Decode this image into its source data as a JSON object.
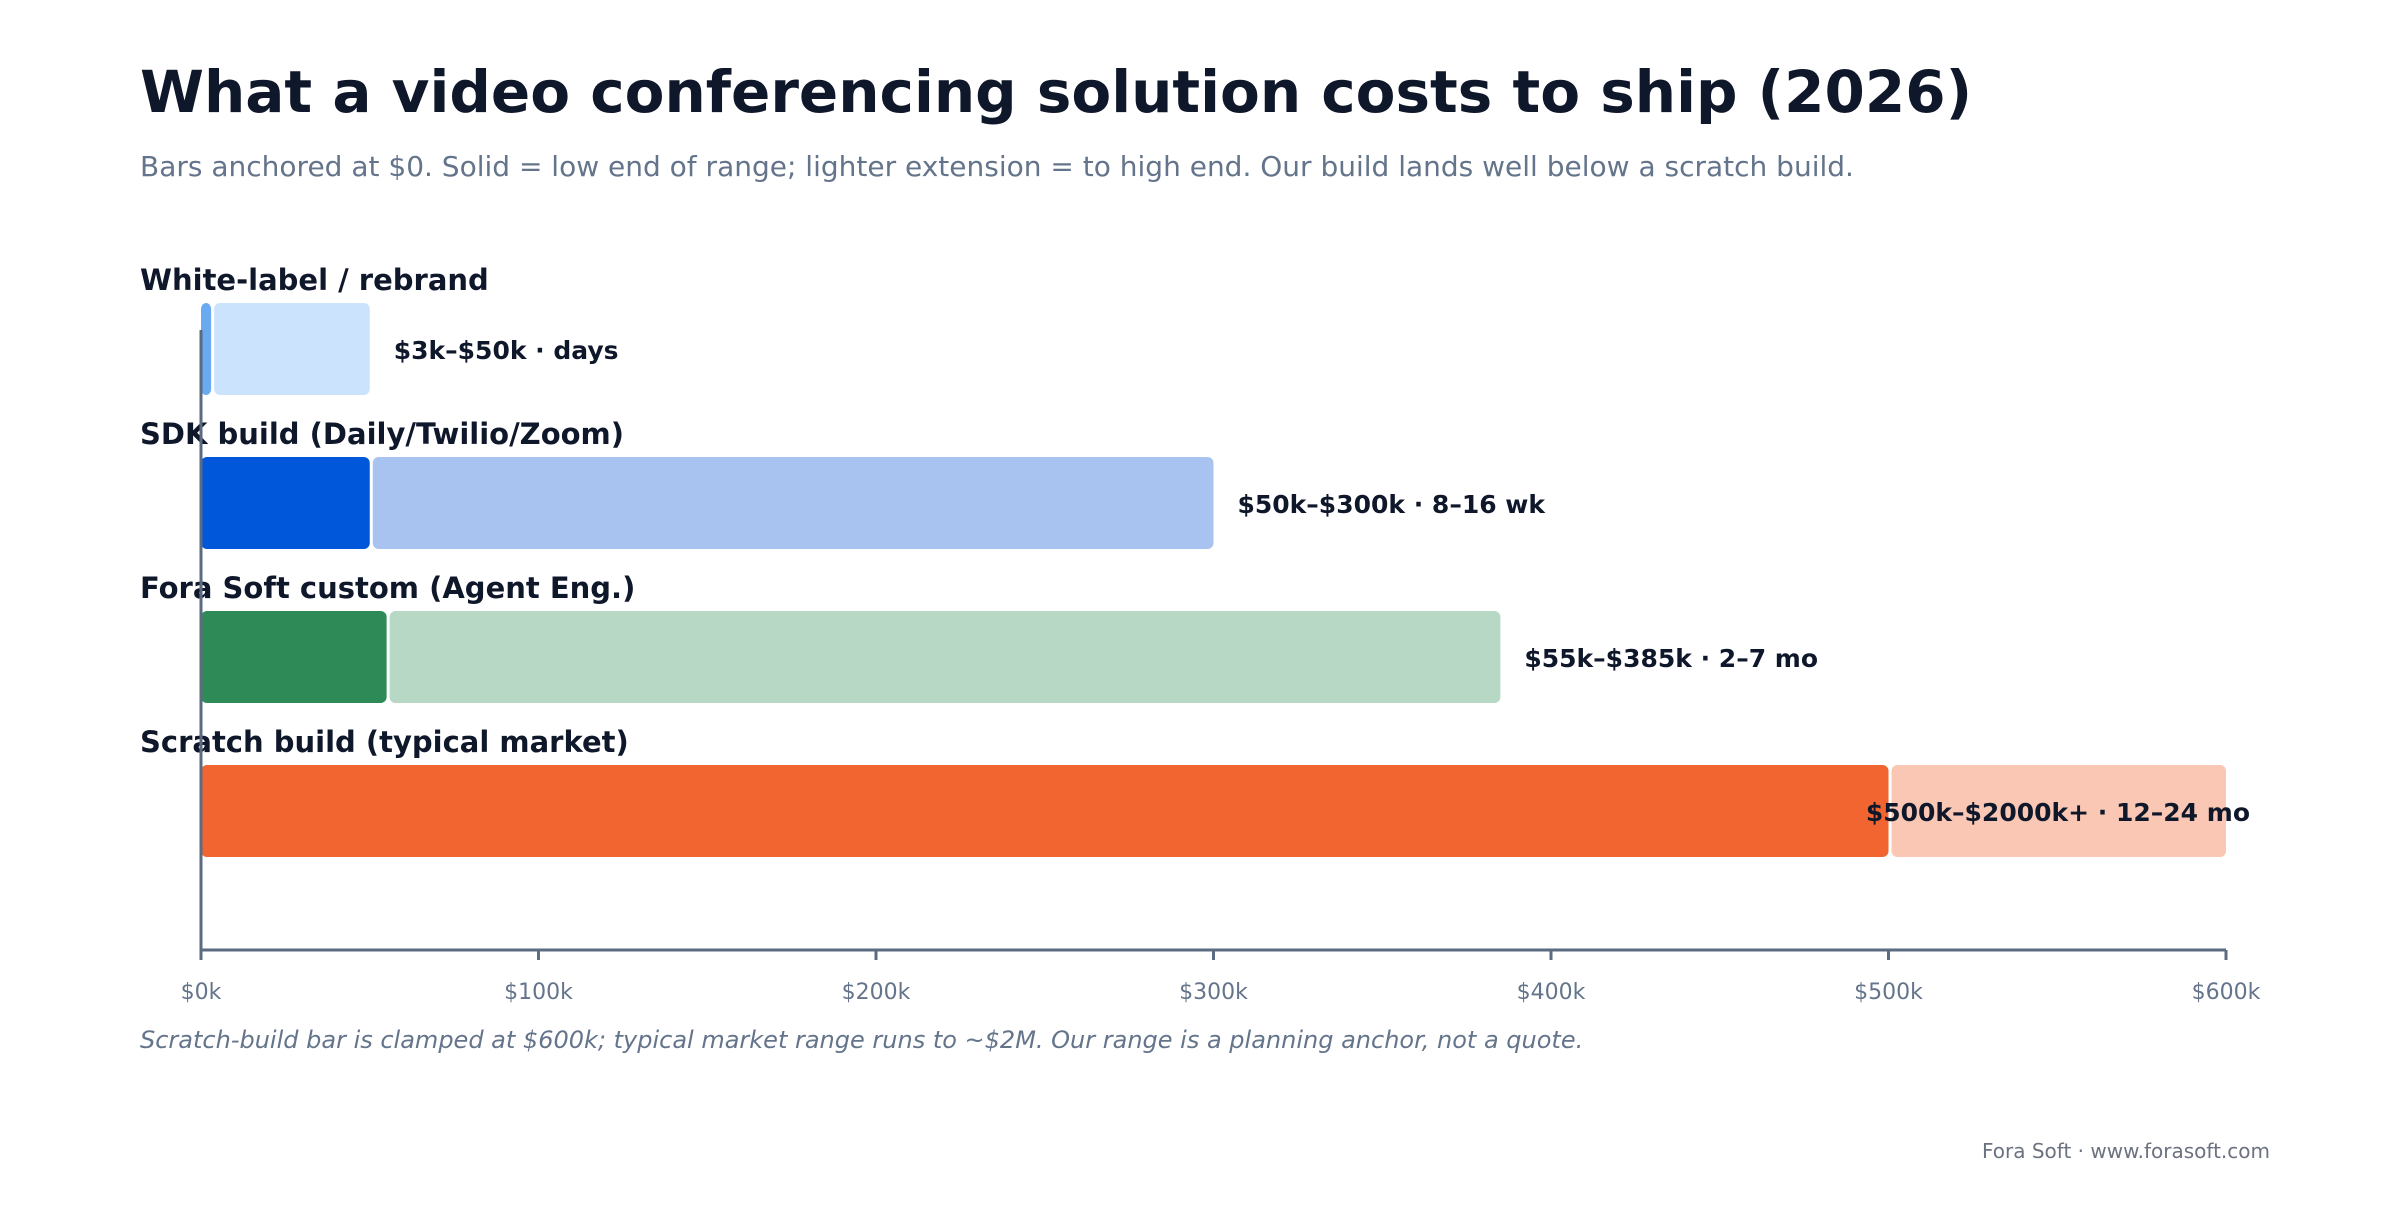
{
  "title": "What a video conferencing solution costs to ship (2026)",
  "subtitle": "Bars anchored at $0. Solid = low end of range; lighter extension = to high end. Our build lands well below a scratch build.",
  "footnote": "Scratch-build bar is clamped at $600k; typical market range runs to ~$2M. Our range is a planning anchor, not a quote.",
  "credit": "Fora Soft · www.forasoft.com",
  "chart_data": {
    "type": "bar",
    "orientation": "horizontal",
    "title": "What a video conferencing solution costs to ship (2026)",
    "xlabel": "",
    "ylabel": "",
    "xlim": [
      0,
      600
    ],
    "unit": "$k",
    "grid": false,
    "x_ticks": [
      0,
      100,
      200,
      300,
      400,
      500,
      600
    ],
    "x_tick_labels": [
      "$0k",
      "$100k",
      "$200k",
      "$300k",
      "$400k",
      "$500k",
      "$600k"
    ],
    "categories": [
      "White-label / rebrand",
      "SDK build (Daily/Twilio/Zoom)",
      "Fora Soft custom (Agent Eng.)",
      "Scratch build (typical market)"
    ],
    "series": [
      {
        "name": "low",
        "values": [
          3,
          50,
          55,
          500
        ],
        "colors": [
          "#6aaaf0",
          "#0057d9",
          "#2e8b57",
          "#f26531"
        ]
      },
      {
        "name": "high",
        "values": [
          50,
          300,
          385,
          600
        ],
        "colors": [
          "#cce3fd",
          "#a8c3f0",
          "#b6d8c5",
          "#f9c7b3"
        ]
      }
    ],
    "value_labels": [
      "$3k–$50k · days",
      "$50k–$300k · 8–16 wk",
      "$55k–$385k · 2–7 mo",
      "$500k–$2000k+ · 12–24 mo"
    ]
  }
}
